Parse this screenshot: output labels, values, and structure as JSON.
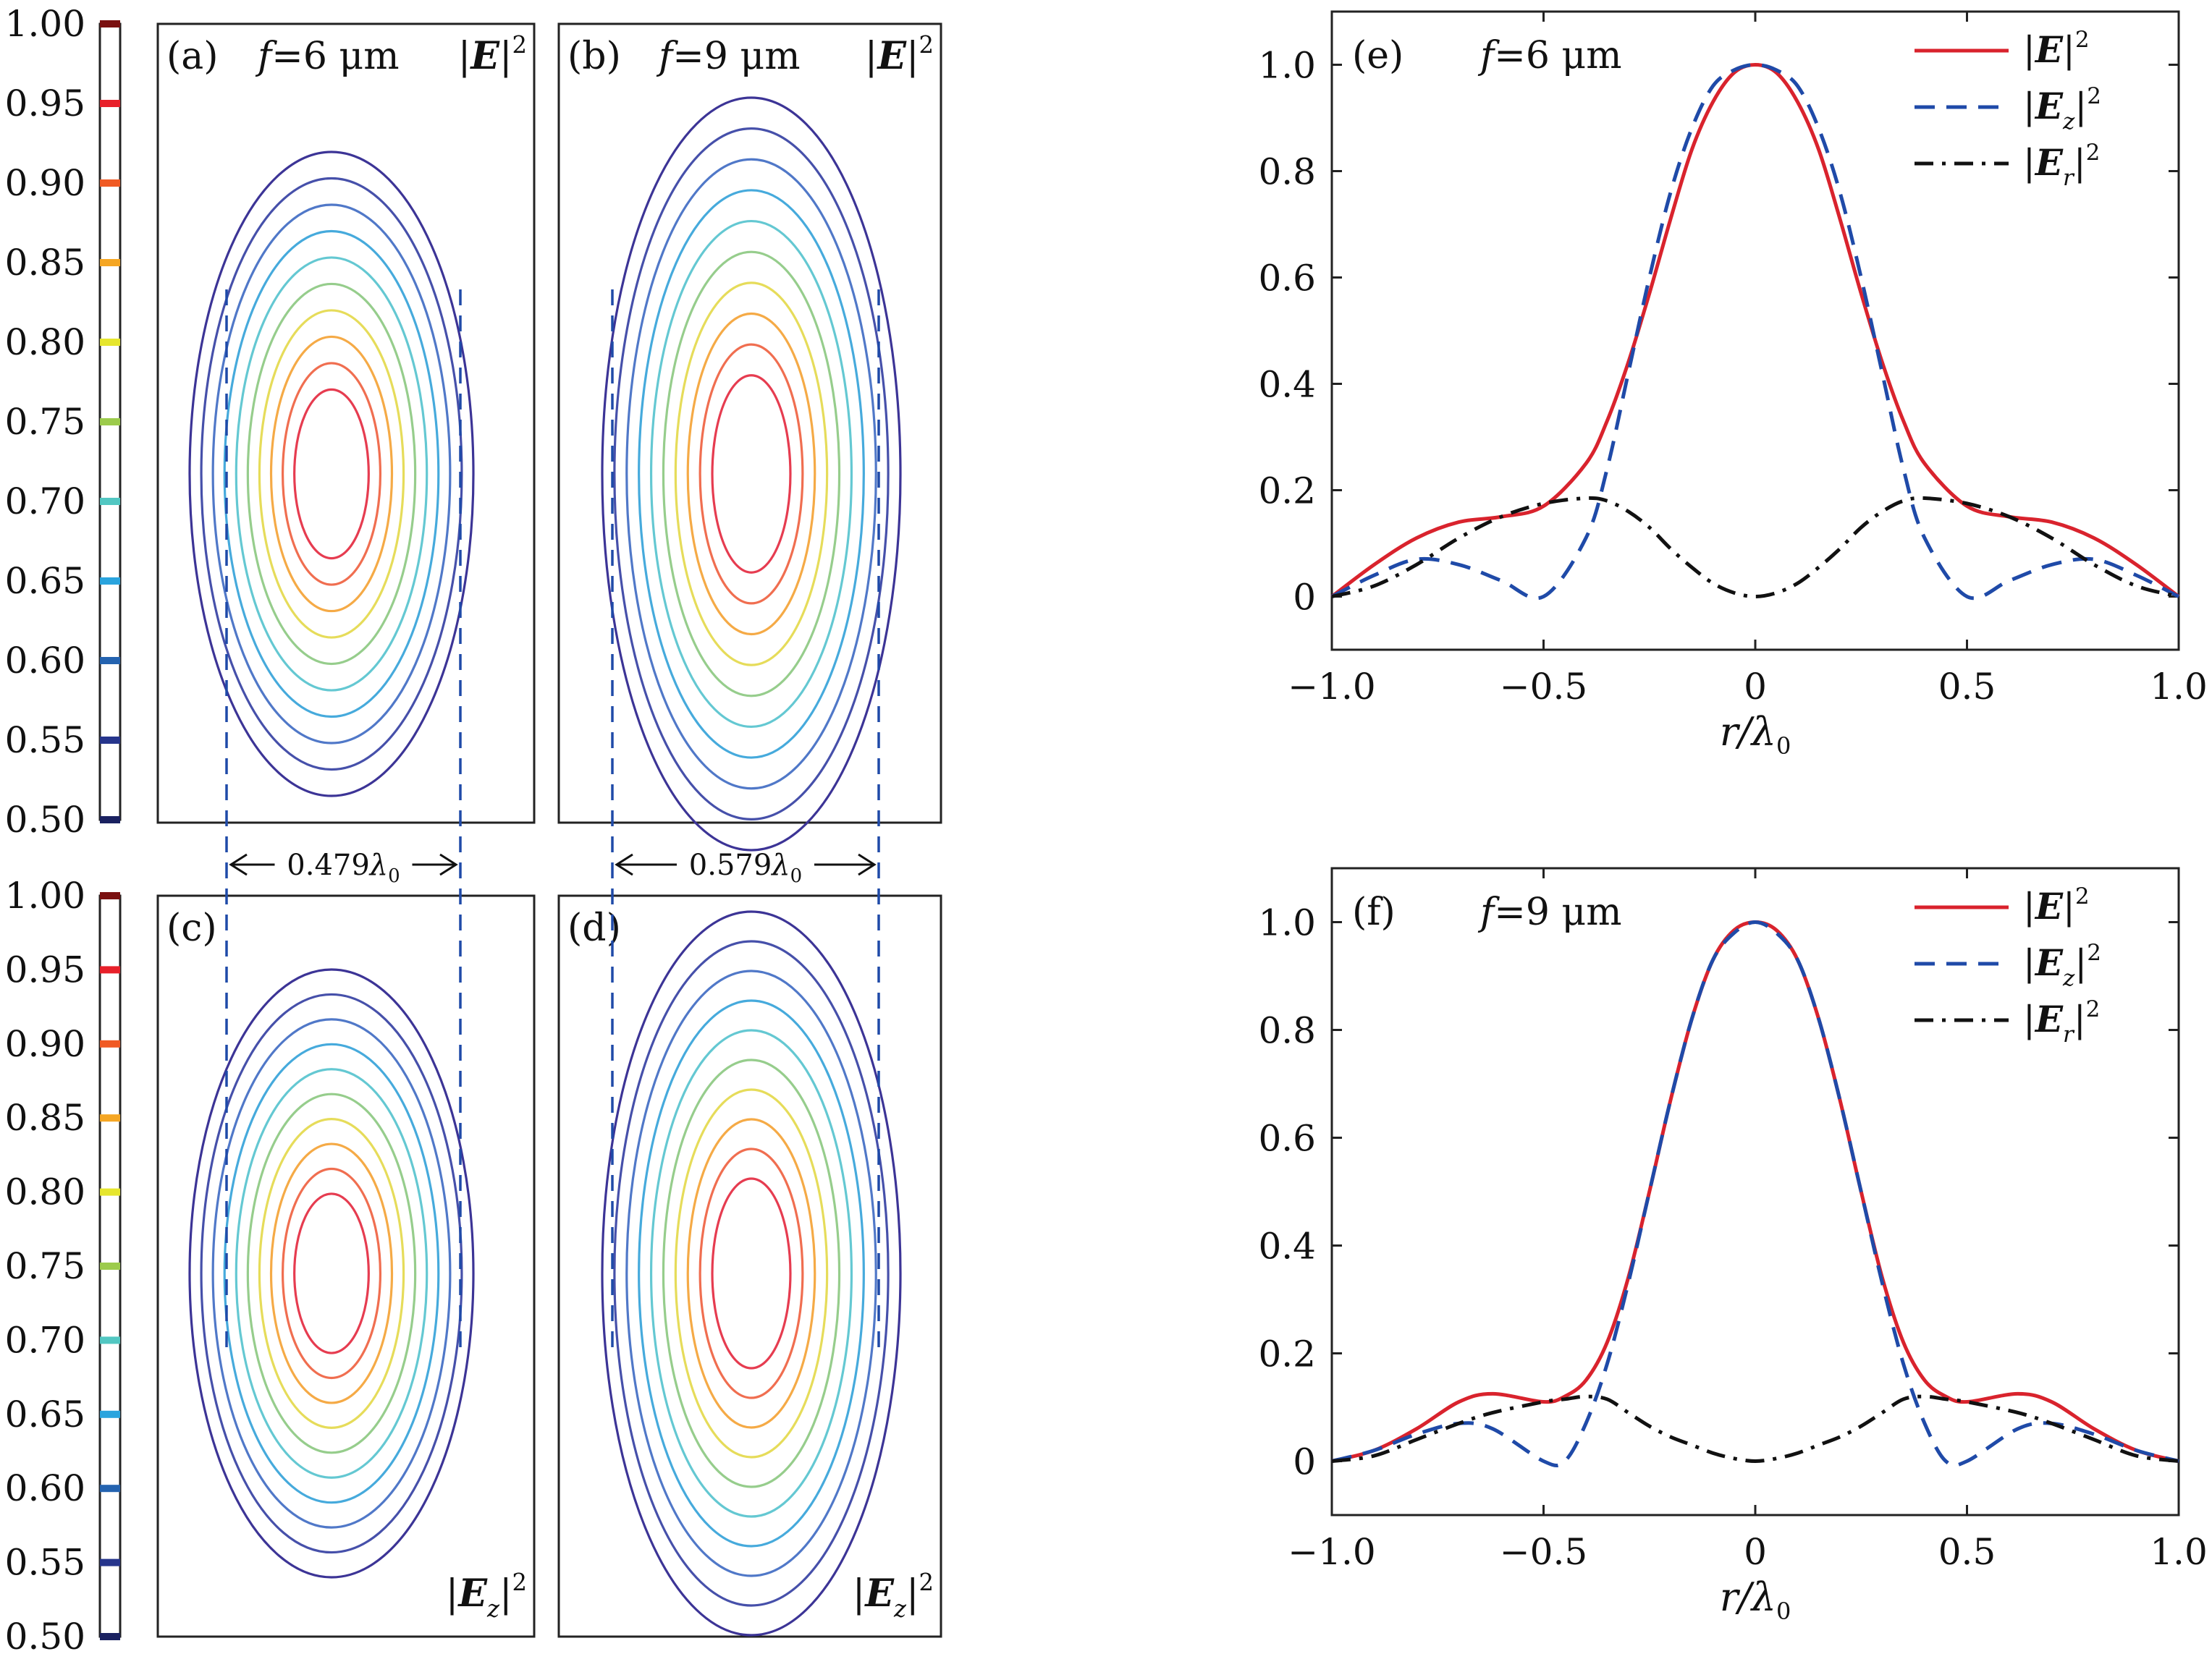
{
  "figure": {
    "colorbar": {
      "ticks": [
        "1.00",
        "0.95",
        "0.90",
        "0.85",
        "0.80",
        "0.75",
        "0.70",
        "0.65",
        "0.60",
        "0.55",
        "0.50"
      ],
      "colors": [
        "#7a1010",
        "#e8202a",
        "#f05a24",
        "#f5a623",
        "#e6e62e",
        "#9ccb4c",
        "#52c7c2",
        "#2aa4de",
        "#2463b0",
        "#26358c",
        "#1a2160"
      ]
    },
    "contour_levels": [
      0.5,
      0.55,
      0.6,
      0.65,
      0.7,
      0.75,
      0.8,
      0.85,
      0.9,
      0.95
    ],
    "contour_panels": [
      {
        "id": "a",
        "label": "(a)",
        "f_sym": "f",
        "f_val": "=6 μm",
        "field_sym": "E",
        "field_sub": "",
        "exp": "2"
      },
      {
        "id": "b",
        "label": "(b)",
        "f_sym": "f",
        "f_val": "=9 μm",
        "field_sym": "E",
        "field_sub": "",
        "exp": "2"
      },
      {
        "id": "c",
        "label": "(c)",
        "f_sym": "",
        "f_val": "",
        "field_sym": "E",
        "field_sub": "z",
        "exp": "2"
      },
      {
        "id": "d",
        "label": "(d)",
        "f_sym": "",
        "f_val": "",
        "field_sym": "E",
        "field_sub": "z",
        "exp": "2"
      }
    ],
    "widths": [
      {
        "value": "0.479",
        "unit": "λ",
        "sub": "0"
      },
      {
        "value": "0.579",
        "unit": "λ",
        "sub": "0"
      }
    ]
  },
  "chart_data": [
    {
      "type": "line",
      "panel": "(e)",
      "f_sym": "f",
      "f_val": "=6 μm",
      "xlabel": "r/λ",
      "xlabel_sub": "0",
      "ylabel": "",
      "xlim": [
        -1.0,
        1.0
      ],
      "ylim": [
        -0.1,
        1.1
      ],
      "xticks": [
        "−1.0",
        "−0.5",
        "0",
        "0.5",
        "1.0"
      ],
      "yticks": [
        "0",
        "0.2",
        "0.4",
        "0.6",
        "0.8",
        "1.0"
      ],
      "legend": [
        {
          "sym": "E",
          "sub": "",
          "exp": "2",
          "color": "#d9232d",
          "style": "solid"
        },
        {
          "sym": "E",
          "sub": "z",
          "exp": "2",
          "color": "#1f4aa8",
          "style": "dashed"
        },
        {
          "sym": "E",
          "sub": "r",
          "exp": "2",
          "color": "#111111",
          "style": "dashdot"
        }
      ],
      "x": [
        -1.0,
        -0.9,
        -0.8,
        -0.7,
        -0.6,
        -0.5,
        -0.4,
        -0.35,
        -0.3,
        -0.25,
        -0.2,
        -0.15,
        -0.1,
        -0.05,
        0,
        0.05,
        0.1,
        0.15,
        0.2,
        0.25,
        0.3,
        0.35,
        0.4,
        0.5,
        0.6,
        0.7,
        0.8,
        0.9,
        1.0
      ],
      "series": [
        {
          "name": "|E|^2",
          "values": [
            0.0,
            0.06,
            0.11,
            0.14,
            0.15,
            0.17,
            0.25,
            0.33,
            0.44,
            0.57,
            0.71,
            0.84,
            0.93,
            0.985,
            1.0,
            0.985,
            0.93,
            0.84,
            0.71,
            0.57,
            0.44,
            0.33,
            0.25,
            0.17,
            0.15,
            0.14,
            0.11,
            0.06,
            0.0
          ]
        },
        {
          "name": "|Ez|^2",
          "values": [
            0.0,
            0.04,
            0.07,
            0.06,
            0.03,
            0.0,
            0.11,
            0.24,
            0.42,
            0.6,
            0.76,
            0.88,
            0.96,
            0.99,
            1.0,
            0.99,
            0.96,
            0.88,
            0.76,
            0.6,
            0.42,
            0.24,
            0.11,
            0.0,
            0.03,
            0.06,
            0.07,
            0.04,
            0.0
          ]
        },
        {
          "name": "|Er|^2",
          "values": [
            0.0,
            0.02,
            0.06,
            0.11,
            0.15,
            0.175,
            0.185,
            0.18,
            0.16,
            0.13,
            0.09,
            0.055,
            0.025,
            0.007,
            0.0,
            0.007,
            0.025,
            0.055,
            0.09,
            0.13,
            0.16,
            0.18,
            0.185,
            0.175,
            0.15,
            0.11,
            0.06,
            0.02,
            0.0
          ]
        }
      ]
    },
    {
      "type": "line",
      "panel": "(f)",
      "f_sym": "f",
      "f_val": "=9 μm",
      "xlabel": "r/λ",
      "xlabel_sub": "0",
      "ylabel": "",
      "xlim": [
        -1.0,
        1.0
      ],
      "ylim": [
        -0.1,
        1.1
      ],
      "xticks": [
        "−1.0",
        "−0.5",
        "0",
        "0.5",
        "1.0"
      ],
      "yticks": [
        "0",
        "0.2",
        "0.4",
        "0.6",
        "0.8",
        "1.0"
      ],
      "legend": [
        {
          "sym": "E",
          "sub": "",
          "exp": "2",
          "color": "#d9232d",
          "style": "solid"
        },
        {
          "sym": "E",
          "sub": "z",
          "exp": "2",
          "color": "#1f4aa8",
          "style": "dashed"
        },
        {
          "sym": "E",
          "sub": "r",
          "exp": "2",
          "color": "#111111",
          "style": "dashdot"
        }
      ],
      "x": [
        -1.0,
        -0.9,
        -0.8,
        -0.7,
        -0.62,
        -0.5,
        -0.45,
        -0.4,
        -0.35,
        -0.3,
        -0.25,
        -0.2,
        -0.15,
        -0.1,
        -0.05,
        0,
        0.05,
        0.1,
        0.15,
        0.2,
        0.25,
        0.3,
        0.35,
        0.4,
        0.45,
        0.5,
        0.62,
        0.7,
        0.8,
        0.9,
        1.0
      ],
      "series": [
        {
          "name": "|E|^2",
          "values": [
            0.0,
            0.02,
            0.06,
            0.11,
            0.125,
            0.11,
            0.12,
            0.15,
            0.22,
            0.34,
            0.5,
            0.67,
            0.82,
            0.93,
            0.985,
            1.0,
            0.985,
            0.93,
            0.82,
            0.67,
            0.5,
            0.34,
            0.22,
            0.15,
            0.12,
            0.11,
            0.125,
            0.11,
            0.06,
            0.02,
            0.0
          ]
        },
        {
          "name": "|Ez|^2",
          "values": [
            0.0,
            0.02,
            0.05,
            0.07,
            0.06,
            0.0,
            0.0,
            0.07,
            0.18,
            0.33,
            0.5,
            0.67,
            0.82,
            0.93,
            0.98,
            1.0,
            0.98,
            0.93,
            0.82,
            0.67,
            0.5,
            0.33,
            0.18,
            0.07,
            0.0,
            0.0,
            0.06,
            0.07,
            0.05,
            0.02,
            0.0
          ]
        },
        {
          "name": "|Er|^2",
          "values": [
            0.0,
            0.01,
            0.04,
            0.07,
            0.09,
            0.11,
            0.115,
            0.12,
            0.115,
            0.09,
            0.065,
            0.045,
            0.03,
            0.015,
            0.005,
            0.0,
            0.005,
            0.015,
            0.03,
            0.045,
            0.065,
            0.09,
            0.115,
            0.12,
            0.115,
            0.11,
            0.09,
            0.07,
            0.04,
            0.01,
            0.0
          ]
        }
      ]
    }
  ]
}
